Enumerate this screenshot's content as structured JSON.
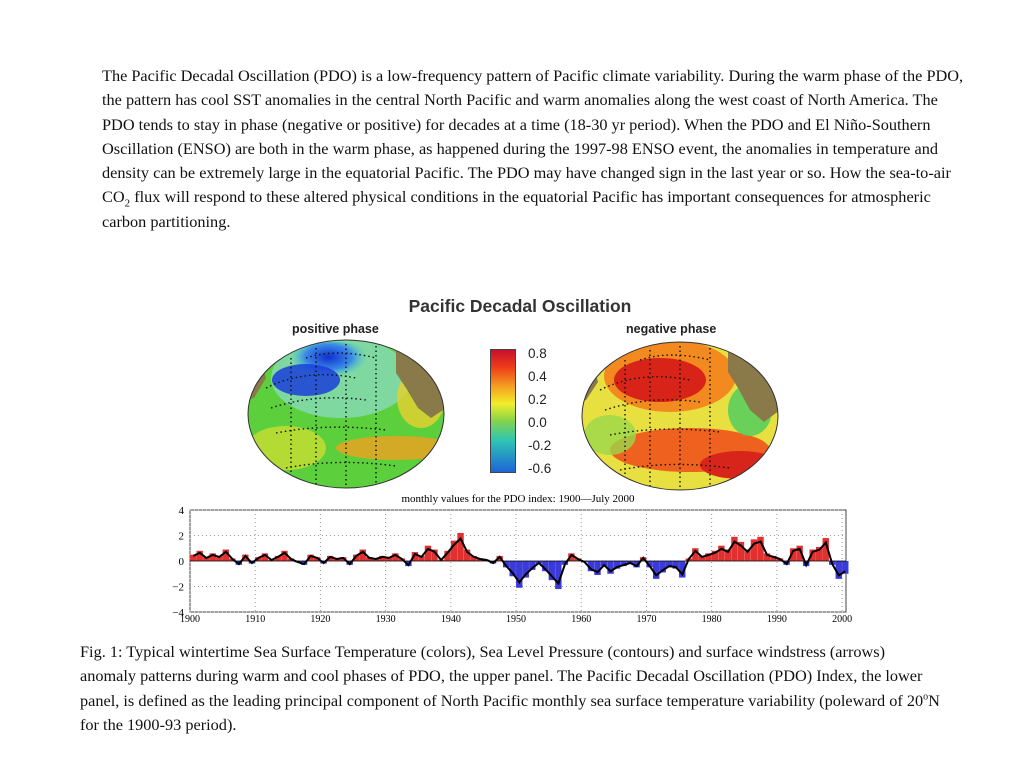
{
  "intro": {
    "part1": "The Pacific Decadal Oscillation (PDO) is a low-frequency pattern of Pacific climate variability.  During the warm phase of the PDO, the pattern has cool SST anomalies in the central North Pacific and warm anomalies along the west coast of North America. The PDO tends to stay in phase (negative or positive) for decades at a time (18-30 yr period).  When the PDO and El Niño-Southern Oscillation (ENSO) are both in the warm phase, as happened during the 1997-98 ENSO event, the anomalies in temperature and density can be extremely large in the equatorial Pacific.  The PDO may have changed sign in the last year or so. How the sea-to-air CO",
    "sub": "2",
    "part2": " flux will respond to these altered physical conditions in the equatorial Pacific has important consequences for atmospheric carbon partitioning."
  },
  "figure": {
    "title": "Pacific Decadal Oscillation",
    "positive_label": "positive phase",
    "negative_label": "negative phase",
    "colorbar_labels": [
      "0.8",
      "0.4",
      "0.2",
      "0.0",
      "-0.2",
      "-0.6"
    ],
    "colors": {
      "warm": "#d92b1c",
      "cool": "#1f5fd6",
      "land": "#8a7a4a"
    }
  },
  "caption": {
    "part1": "Fig. 1: Typical wintertime Sea Surface Temperature (colors), Sea Level Pressure (contours) and surface windstress (arrows) anomaly patterns during warm and cool phases of PDO, the upper panel. The Pacific Decadal Oscillation (PDO) Index, the lower panel, is defined as the leading principal component of North Pacific monthly sea surface temperature variability (poleward of 20",
    "sup": "o",
    "part2": "N for the 1900-93 period)."
  },
  "chart_data": {
    "type": "area",
    "title": "monthly values for the PDO index: 1900—July 2000",
    "xlabel": "",
    "ylabel": "",
    "xlim": [
      1900,
      2000.6
    ],
    "ylim": [
      -4,
      4
    ],
    "x_ticks": [
      "1900",
      "1910",
      "1920",
      "1930",
      "1940",
      "1950",
      "1960",
      "1970",
      "1980",
      "1990",
      "2000"
    ],
    "y_ticks": [
      "4",
      "2",
      "0",
      "−2",
      "−4"
    ],
    "grid": true,
    "colors": {
      "positive": "#e03030",
      "negative": "#3a3ad8",
      "line": "#000000"
    },
    "series": [
      {
        "x": [
          1900,
          1901,
          1902,
          1903,
          1904,
          1905,
          1906,
          1907,
          1908,
          1909,
          1910,
          1911,
          1912,
          1913,
          1914,
          1915,
          1916,
          1917,
          1918,
          1919,
          1920,
          1921,
          1922,
          1923,
          1924,
          1925,
          1926,
          1927,
          1928,
          1929,
          1930,
          1931,
          1932,
          1933,
          1934,
          1935,
          1936,
          1937,
          1938,
          1939,
          1940,
          1941,
          1942,
          1943,
          1944,
          1945,
          1946,
          1947,
          1948,
          1949,
          1950,
          1951,
          1952,
          1953,
          1954,
          1955,
          1956,
          1957,
          1958,
          1959,
          1960,
          1961,
          1962,
          1963,
          1964,
          1965,
          1966,
          1967,
          1968,
          1969,
          1970,
          1971,
          1972,
          1973,
          1974,
          1975,
          1976,
          1977,
          1978,
          1979,
          1980,
          1981,
          1982,
          1983,
          1984,
          1985,
          1986,
          1987,
          1988,
          1989,
          1990,
          1991,
          1992,
          1993,
          1994,
          1995,
          1996,
          1997,
          1998,
          1999,
          2000
        ],
        "values": [
          0.5,
          0.8,
          0.3,
          0.6,
          0.4,
          0.9,
          0.2,
          -0.3,
          0.5,
          -0.2,
          0.3,
          0.6,
          0.1,
          0.4,
          0.8,
          0.2,
          -0.1,
          -0.3,
          0.5,
          0.3,
          -0.2,
          0.4,
          0.2,
          0.3,
          -0.3,
          0.5,
          0.9,
          0.3,
          0.2,
          0.4,
          0.3,
          0.6,
          0.2,
          -0.4,
          0.7,
          0.4,
          1.2,
          0.9,
          0.1,
          0.8,
          1.6,
          2.2,
          0.9,
          0.4,
          0.2,
          0.1,
          -0.2,
          0.4,
          -0.5,
          -1.2,
          -2.1,
          -1.3,
          -0.7,
          -0.2,
          -0.8,
          -1.5,
          -2.2,
          -0.3,
          0.6,
          0.2,
          -0.1,
          -0.8,
          -1.1,
          -0.4,
          -1.0,
          -0.6,
          -0.4,
          -0.2,
          -0.5,
          0.3,
          -0.5,
          -1.4,
          -0.9,
          -0.5,
          -0.6,
          -1.3,
          0.2,
          1.0,
          0.4,
          0.6,
          0.8,
          1.2,
          0.9,
          1.9,
          1.5,
          0.9,
          1.7,
          1.9,
          0.6,
          0.4,
          0.2,
          -0.3,
          1.0,
          1.2,
          -0.4,
          0.9,
          1.1,
          1.8,
          -0.3,
          -1.4,
          -1.0
        ]
      }
    ]
  }
}
